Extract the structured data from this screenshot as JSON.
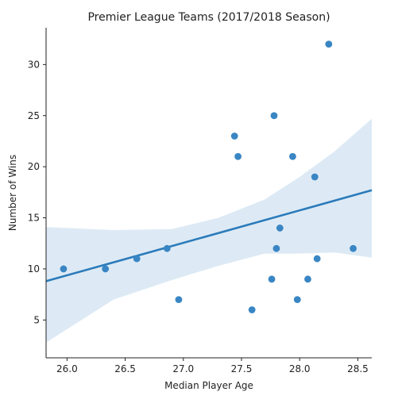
{
  "chart_data": {
    "type": "scatter",
    "title": "Premier League Teams (2017/2018 Season)",
    "xlabel": "Median Player Age",
    "ylabel": "Number of Wins",
    "xlim": [
      25.82,
      28.62
    ],
    "ylim": [
      1.3,
      33.6
    ],
    "xticks": [
      "26.0",
      "26.5",
      "27.0",
      "27.5",
      "28.0",
      "28.5"
    ],
    "yticks": [
      "5",
      "10",
      "15",
      "20",
      "25",
      "30"
    ],
    "grid": false,
    "colors": {
      "point": "#3a86c4",
      "line": "#2b7bba",
      "band": "#c6dcef"
    },
    "points": [
      {
        "x": 25.97,
        "y": 10
      },
      {
        "x": 26.33,
        "y": 10
      },
      {
        "x": 26.6,
        "y": 11
      },
      {
        "x": 26.86,
        "y": 12
      },
      {
        "x": 26.96,
        "y": 7
      },
      {
        "x": 27.44,
        "y": 23
      },
      {
        "x": 27.47,
        "y": 21
      },
      {
        "x": 27.59,
        "y": 6
      },
      {
        "x": 27.76,
        "y": 9
      },
      {
        "x": 27.78,
        "y": 25
      },
      {
        "x": 27.8,
        "y": 12
      },
      {
        "x": 27.83,
        "y": 14
      },
      {
        "x": 27.94,
        "y": 21
      },
      {
        "x": 27.98,
        "y": 7
      },
      {
        "x": 28.07,
        "y": 9
      },
      {
        "x": 28.13,
        "y": 19
      },
      {
        "x": 28.15,
        "y": 11
      },
      {
        "x": 28.25,
        "y": 32
      },
      {
        "x": 28.46,
        "y": 12
      }
    ],
    "regression": {
      "x": [
        25.82,
        28.62
      ],
      "y": [
        8.8,
        17.7
      ]
    },
    "confidence_band": {
      "x": [
        25.82,
        26.4,
        26.9,
        27.3,
        27.7,
        28.0,
        28.3,
        28.62
      ],
      "lower": [
        2.8,
        7.0,
        8.9,
        10.3,
        11.5,
        11.5,
        11.6,
        11.1
      ],
      "upper": [
        14.1,
        13.8,
        13.9,
        15.0,
        16.8,
        19.0,
        21.5,
        24.7
      ]
    }
  }
}
